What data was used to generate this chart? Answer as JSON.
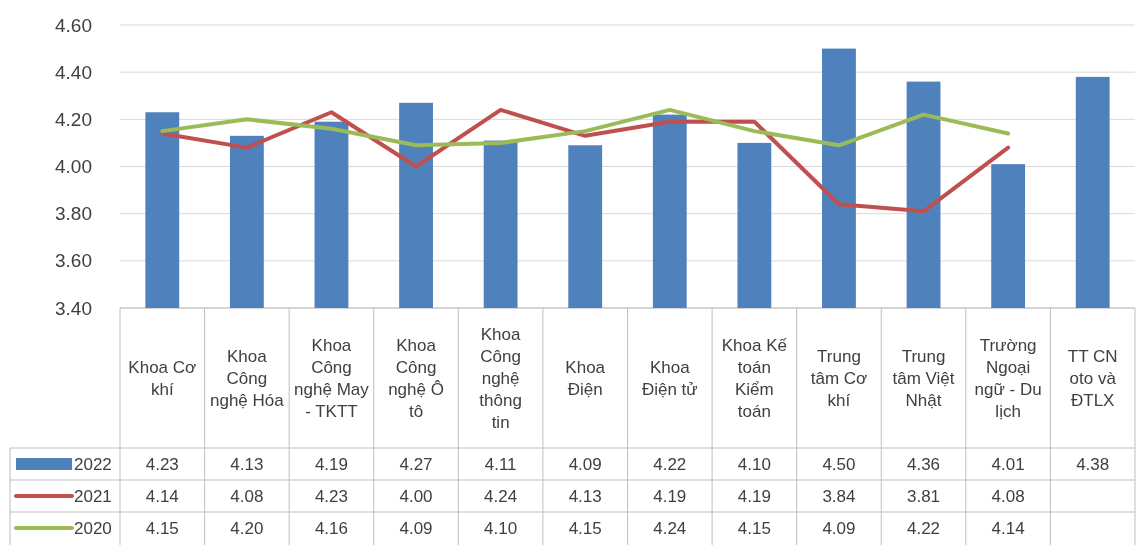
{
  "chart_data": {
    "type": "bar",
    "categories": [
      "Khoa Cơ khí",
      "Khoa Công nghệ Hóa",
      "Khoa Công nghệ May - TKTT",
      "Khoa Công nghệ Ô tô",
      "Khoa Công nghệ thông tin",
      "Khoa Điện",
      "Khoa Điện tử",
      "Khoa Kế toán Kiểm toán",
      "Trung tâm Cơ khí",
      "Trung tâm Việt Nhật",
      "Trường Ngoại ngữ - Du lịch",
      "TT CN oto và ĐTLX"
    ],
    "series": [
      {
        "name": "2022",
        "color": "#4f81bd",
        "values": [
          4.23,
          4.13,
          4.19,
          4.27,
          4.11,
          4.09,
          4.22,
          4.1,
          4.5,
          4.36,
          4.01,
          4.38
        ],
        "value_labels": [
          "4.23",
          "4.13",
          "4.19",
          "4.27",
          "4.11",
          "4.09",
          "4.22",
          "4.10",
          "4.50",
          "4.36",
          "4.01",
          "4.38"
        ]
      },
      {
        "name": "2021",
        "type": "line",
        "color": "#c0504d",
        "values": [
          4.14,
          4.08,
          4.23,
          4.0,
          4.24,
          4.13,
          4.19,
          4.19,
          3.84,
          3.81,
          4.08,
          null
        ],
        "value_labels": [
          "4.14",
          "4.08",
          "4.23",
          "4.00",
          "4.24",
          "4.13",
          "4.19",
          "4.19",
          "3.84",
          "3.81",
          "4.08",
          null
        ]
      },
      {
        "name": "2020",
        "type": "line",
        "color": "#9bbb59",
        "values": [
          4.15,
          4.2,
          4.16,
          4.09,
          4.1,
          4.15,
          4.24,
          4.15,
          4.09,
          4.22,
          4.14,
          null
        ],
        "value_labels": [
          "4.15",
          "4.20",
          "4.16",
          "4.09",
          "4.10",
          "4.15",
          "4.24",
          "4.15",
          "4.09",
          "4.22",
          "4.14",
          null
        ]
      }
    ],
    "ylim": [
      3.4,
      4.6
    ],
    "yticks": [
      {
        "value": 3.4,
        "label": "3.40"
      },
      {
        "value": 3.6,
        "label": "3.60"
      },
      {
        "value": 3.8,
        "label": "3.80"
      },
      {
        "value": 4.0,
        "label": "4.00"
      },
      {
        "value": 4.2,
        "label": "4.20"
      },
      {
        "value": 4.4,
        "label": "4.40"
      },
      {
        "value": 4.6,
        "label": "4.60"
      }
    ],
    "grid": "y",
    "legend": "bottom",
    "line_style": "solid",
    "marker": "none"
  }
}
